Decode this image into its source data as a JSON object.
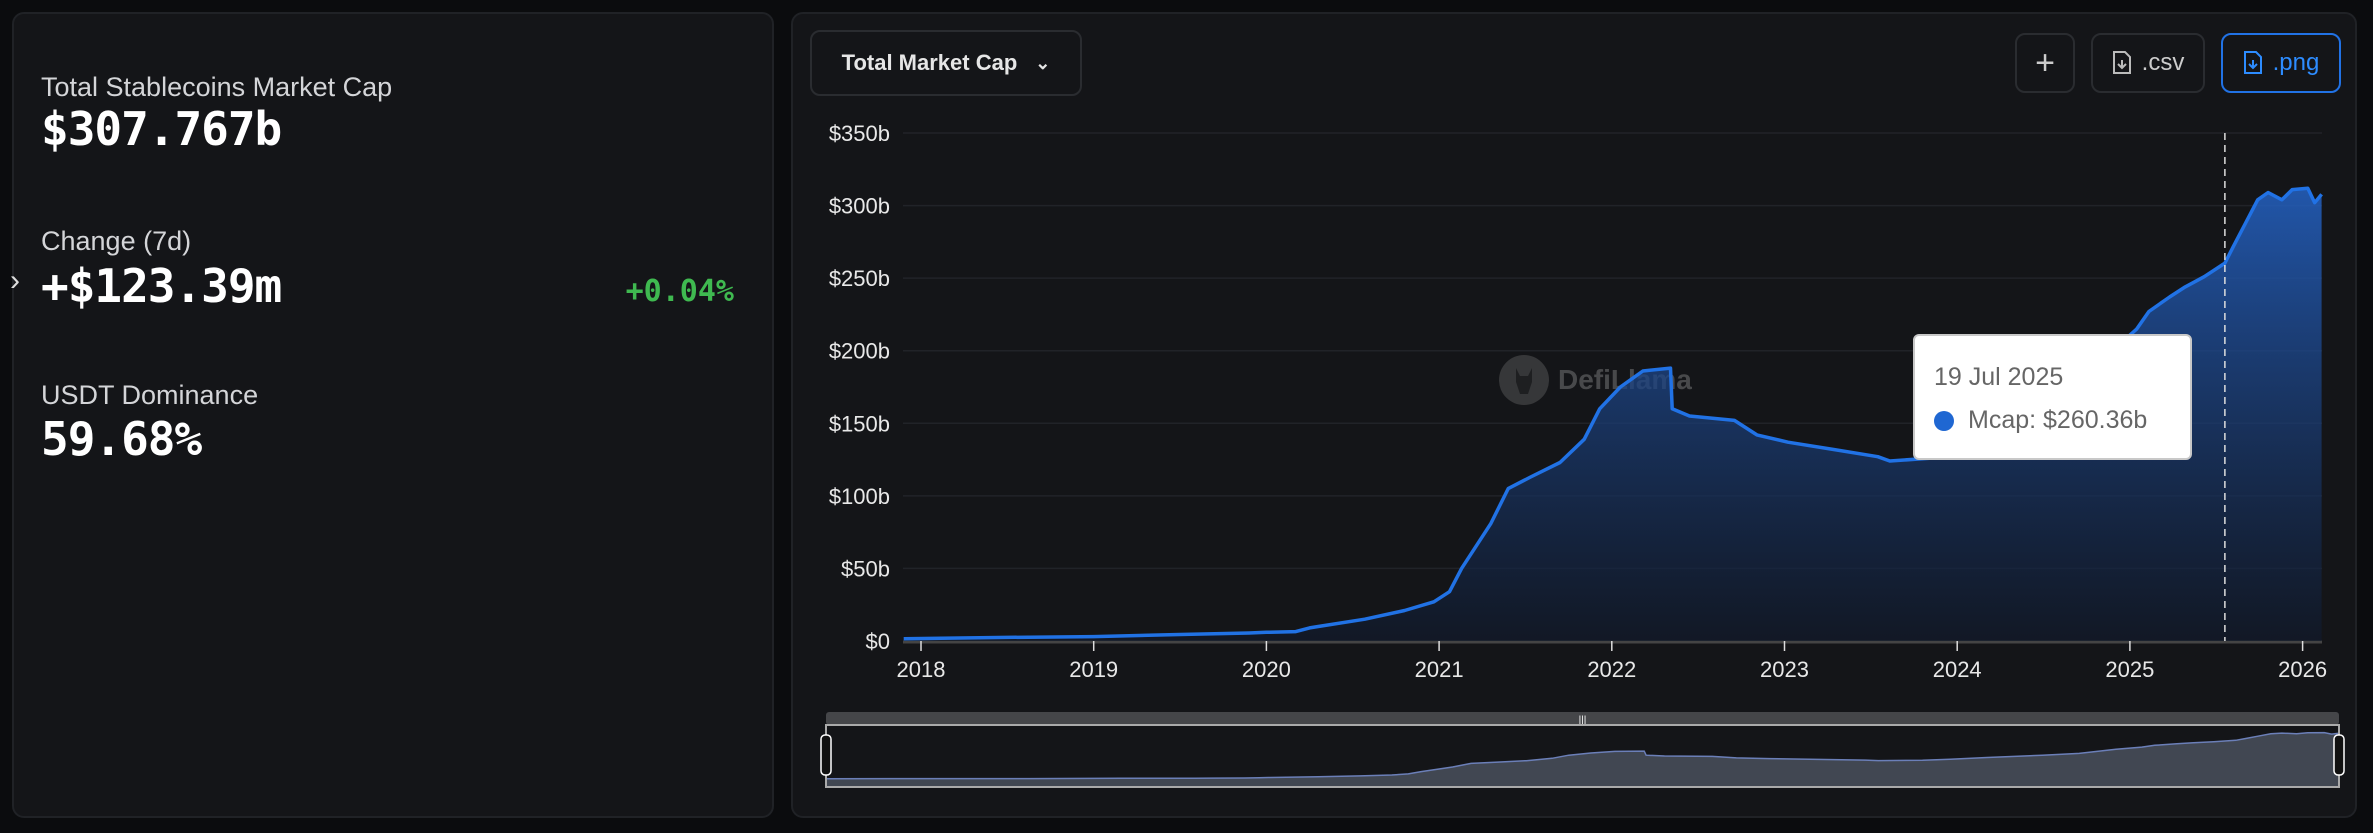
{
  "summary": {
    "mcap_label": "Total Stablecoins Market Cap",
    "mcap_value": "$307.767b",
    "change_label": "Change (7d)",
    "change_value": "+$123.39m",
    "change_pct": "+0.04%",
    "dominance_label": "USDT Dominance",
    "dominance_value": "59.68%"
  },
  "toolbar": {
    "dropdown_label": "Total Market Cap",
    "add_label": "+",
    "csv_label": ".csv",
    "png_label": ".png"
  },
  "watermark": "DefiLlama",
  "tooltip": {
    "date": "19 Jul 2025",
    "value": "Mcap: $260.36b"
  },
  "colors": {
    "line": "#2172e5",
    "positive": "#3fb950",
    "minimap": "#414752"
  },
  "chart_data": {
    "type": "area",
    "series": [
      {
        "name": "Mcap"
      }
    ],
    "y_ticks": [
      "$0",
      "$50b",
      "$100b",
      "$150b",
      "$200b",
      "$250b",
      "$300b",
      "$350b"
    ],
    "y_tick_values": [
      0,
      50,
      100,
      150,
      200,
      250,
      300,
      350
    ],
    "x_ticks": [
      "2018",
      "2019",
      "2020",
      "2021",
      "2022",
      "2023",
      "2024",
      "2025",
      "2026"
    ],
    "ylim": [
      0,
      350
    ],
    "xlim": [
      2017.9,
      2026.11
    ],
    "grid": true,
    "crosshair_x": 2025.55,
    "points": [
      [
        2017.9,
        1.5
      ],
      [
        2018.5,
        2.5
      ],
      [
        2019.0,
        3
      ],
      [
        2019.5,
        4.5
      ],
      [
        2019.9,
        5.5
      ],
      [
        2020.0,
        6
      ],
      [
        2020.17,
        6.5
      ],
      [
        2020.25,
        9
      ],
      [
        2020.3,
        10
      ],
      [
        2020.57,
        15
      ],
      [
        2020.8,
        21
      ],
      [
        2020.97,
        27
      ],
      [
        2021.06,
        34
      ],
      [
        2021.13,
        50
      ],
      [
        2021.3,
        81
      ],
      [
        2021.4,
        105
      ],
      [
        2021.53,
        113
      ],
      [
        2021.7,
        123
      ],
      [
        2021.84,
        139
      ],
      [
        2021.93,
        160
      ],
      [
        2022.05,
        175
      ],
      [
        2022.18,
        186
      ],
      [
        2022.34,
        188
      ],
      [
        2022.35,
        160
      ],
      [
        2022.45,
        155
      ],
      [
        2022.71,
        152
      ],
      [
        2022.84,
        142
      ],
      [
        2023.02,
        137
      ],
      [
        2023.28,
        132
      ],
      [
        2023.54,
        127
      ],
      [
        2023.61,
        124
      ],
      [
        2023.85,
        126
      ],
      [
        2024.0,
        133
      ],
      [
        2024.2,
        145
      ],
      [
        2024.5,
        160
      ],
      [
        2024.7,
        172
      ],
      [
        2024.9,
        200
      ],
      [
        2025.04,
        215
      ],
      [
        2025.11,
        227
      ],
      [
        2025.23,
        237
      ],
      [
        2025.32,
        244
      ],
      [
        2025.43,
        251
      ],
      [
        2025.55,
        260.36
      ],
      [
        2025.6,
        272
      ],
      [
        2025.67,
        288
      ],
      [
        2025.74,
        304
      ],
      [
        2025.8,
        309
      ],
      [
        2025.88,
        304
      ],
      [
        2025.94,
        311
      ],
      [
        2026.03,
        312
      ],
      [
        2026.07,
        302
      ],
      [
        2026.11,
        307.8
      ]
    ]
  }
}
